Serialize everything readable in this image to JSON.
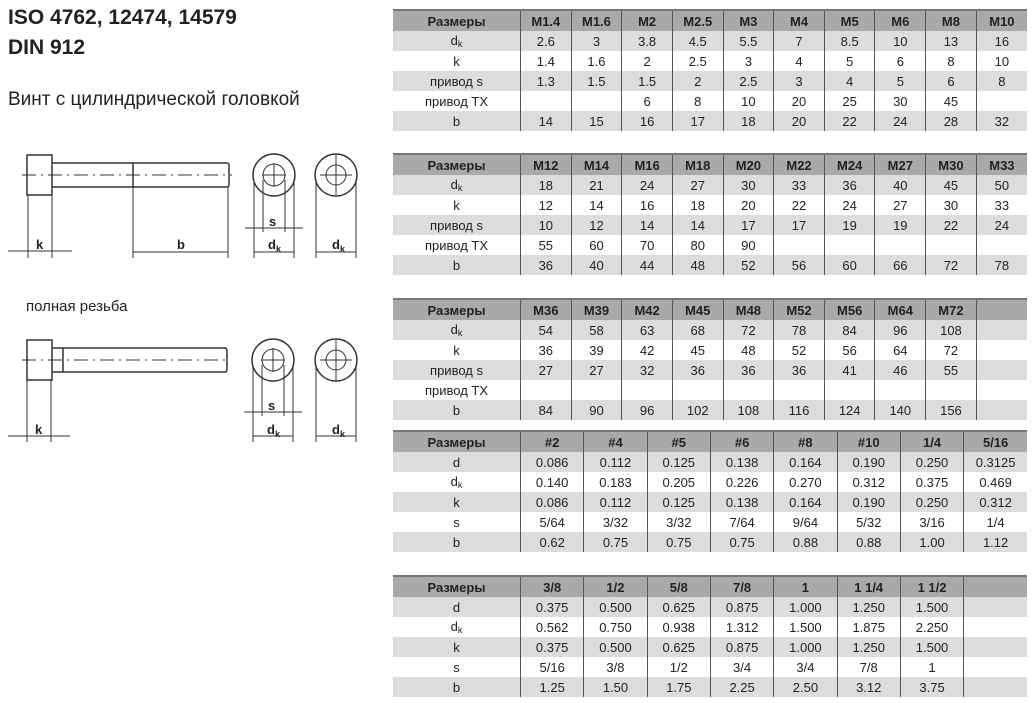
{
  "header": {
    "title_line1": "ISO 4762, 12474, 14579",
    "title_line2": "DIN 912",
    "subtitle": "Винт с цилиндрической головкой",
    "full_thread_label": "полная резьба"
  },
  "drawing_labels": {
    "k": "k",
    "b": "b",
    "s": "s",
    "d": "d",
    "k_sub": "k"
  },
  "tables": [
    {
      "header": [
        "Размеры",
        "M1.4",
        "M1.6",
        "M2",
        "M2.5",
        "M3",
        "M4",
        "M5",
        "M6",
        "M8",
        "M10"
      ],
      "rows": [
        {
          "label": "d",
          "sub": "k",
          "values": [
            "2.6",
            "3",
            "3.8",
            "4.5",
            "5.5",
            "7",
            "8.5",
            "10",
            "13",
            "16"
          ]
        },
        {
          "label": "k",
          "values": [
            "1.4",
            "1.6",
            "2",
            "2.5",
            "3",
            "4",
            "5",
            "6",
            "8",
            "10"
          ]
        },
        {
          "label": "привод s",
          "values": [
            "1.3",
            "1.5",
            "1.5",
            "2",
            "2.5",
            "3",
            "4",
            "5",
            "6",
            "8"
          ]
        },
        {
          "label": "привод TX",
          "values": [
            "",
            "",
            "6",
            "8",
            "10",
            "20",
            "25",
            "30",
            "45",
            ""
          ]
        },
        {
          "label": "b",
          "values": [
            "14",
            "15",
            "16",
            "17",
            "18",
            "20",
            "22",
            "24",
            "28",
            "32"
          ]
        }
      ]
    },
    {
      "header": [
        "Размеры",
        "M12",
        "M14",
        "M16",
        "M18",
        "M20",
        "M22",
        "M24",
        "M27",
        "M30",
        "M33"
      ],
      "rows": [
        {
          "label": "d",
          "sub": "k",
          "values": [
            "18",
            "21",
            "24",
            "27",
            "30",
            "33",
            "36",
            "40",
            "45",
            "50"
          ]
        },
        {
          "label": "k",
          "values": [
            "12",
            "14",
            "16",
            "18",
            "20",
            "22",
            "24",
            "27",
            "30",
            "33"
          ]
        },
        {
          "label": "привод s",
          "values": [
            "10",
            "12",
            "14",
            "14",
            "17",
            "17",
            "19",
            "19",
            "22",
            "24"
          ]
        },
        {
          "label": "привод TX",
          "values": [
            "55",
            "60",
            "70",
            "80",
            "90",
            "",
            "",
            "",
            "",
            ""
          ]
        },
        {
          "label": "b",
          "values": [
            "36",
            "40",
            "44",
            "48",
            "52",
            "56",
            "60",
            "66",
            "72",
            "78"
          ]
        }
      ]
    },
    {
      "header": [
        "Размеры",
        "M36",
        "M39",
        "M42",
        "M45",
        "M48",
        "M52",
        "M56",
        "M64",
        "M72",
        ""
      ],
      "rows": [
        {
          "label": "d",
          "sub": "k",
          "values": [
            "54",
            "58",
            "63",
            "68",
            "72",
            "78",
            "84",
            "96",
            "108",
            ""
          ]
        },
        {
          "label": "k",
          "values": [
            "36",
            "39",
            "42",
            "45",
            "48",
            "52",
            "56",
            "64",
            "72",
            ""
          ]
        },
        {
          "label": "привод s",
          "values": [
            "27",
            "27",
            "32",
            "36",
            "36",
            "36",
            "41",
            "46",
            "55",
            ""
          ]
        },
        {
          "label": "привод TX",
          "values": [
            "",
            "",
            "",
            "",
            "",
            "",
            "",
            "",
            "",
            ""
          ]
        },
        {
          "label": "b",
          "values": [
            "84",
            "90",
            "96",
            "102",
            "108",
            "116",
            "124",
            "140",
            "156",
            ""
          ]
        }
      ]
    },
    {
      "header": [
        "Размеры",
        "#2",
        "#4",
        "#5",
        "#6",
        "#8",
        "#10",
        "1/4",
        "5/16"
      ],
      "rows": [
        {
          "label": "d",
          "values": [
            "0.086",
            "0.112",
            "0.125",
            "0.138",
            "0.164",
            "0.190",
            "0.250",
            "0.3125"
          ]
        },
        {
          "label": "d",
          "sub": "k",
          "values": [
            "0.140",
            "0.183",
            "0.205",
            "0.226",
            "0.270",
            "0.312",
            "0.375",
            "0.469"
          ]
        },
        {
          "label": "k",
          "values": [
            "0.086",
            "0.112",
            "0.125",
            "0.138",
            "0.164",
            "0.190",
            "0.250",
            "0.312"
          ]
        },
        {
          "label": "s",
          "values": [
            "5/64",
            "3/32",
            "3/32",
            "7/64",
            "9/64",
            "5/32",
            "3/16",
            "1/4"
          ]
        },
        {
          "label": "b",
          "values": [
            "0.62",
            "0.75",
            "0.75",
            "0.75",
            "0.88",
            "0.88",
            "1.00",
            "1.12"
          ]
        }
      ]
    },
    {
      "header": [
        "Размеры",
        "3/8",
        "1/2",
        "5/8",
        "7/8",
        "1",
        "1 1/4",
        "1 1/2",
        ""
      ],
      "rows": [
        {
          "label": "d",
          "values": [
            "0.375",
            "0.500",
            "0.625",
            "0.875",
            "1.000",
            "1.250",
            "1.500",
            ""
          ]
        },
        {
          "label": "d",
          "sub": "k",
          "values": [
            "0.562",
            "0.750",
            "0.938",
            "1.312",
            "1.500",
            "1.875",
            "2.250",
            ""
          ]
        },
        {
          "label": "k",
          "values": [
            "0.375",
            "0.500",
            "0.625",
            "0.875",
            "1.000",
            "1.250",
            "1.500",
            ""
          ]
        },
        {
          "label": "s",
          "values": [
            "5/16",
            "3/8",
            "1/2",
            "3/4",
            "3/4",
            "7/8",
            "1",
            ""
          ]
        },
        {
          "label": "b",
          "values": [
            "1.25",
            "1.50",
            "1.75",
            "2.25",
            "2.50",
            "3.12",
            "3.75",
            ""
          ]
        }
      ]
    }
  ]
}
